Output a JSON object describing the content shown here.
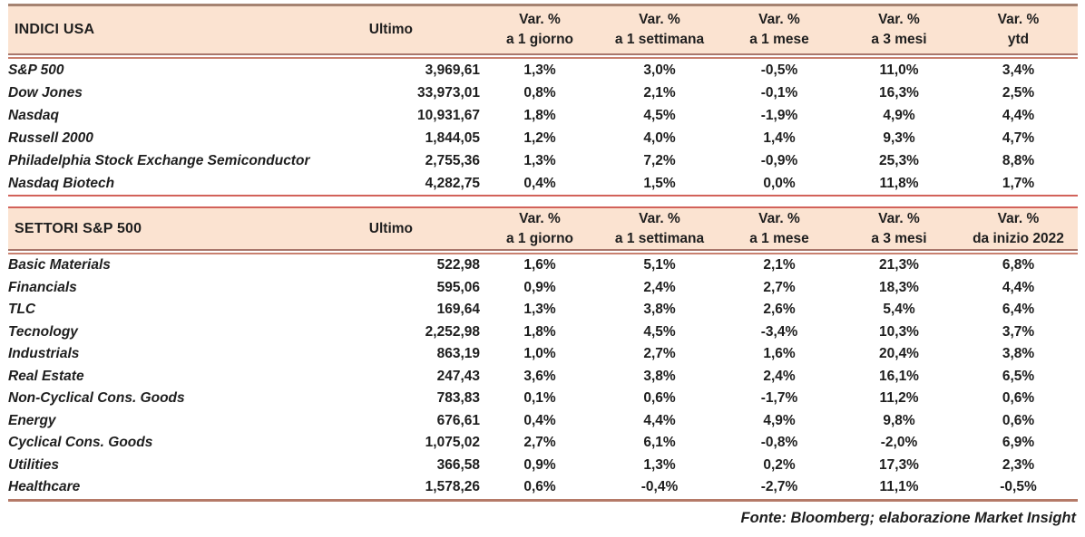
{
  "colors": {
    "header_bg": "#fbe3d1",
    "accent_red": "#d2625a",
    "accent_brown": "#a8766b",
    "accent_brown_light": "#c9806f",
    "bottom_line": "#b57a68",
    "text": "#1e1e1e"
  },
  "tables": [
    {
      "title": "INDICI USA",
      "ultimo_label": "Ultimo",
      "var_columns": [
        {
          "line1": "Var. %",
          "line2": "a 1 giorno"
        },
        {
          "line1": "Var. %",
          "line2": "a 1 settimana"
        },
        {
          "line1": "Var. %",
          "line2": "a 1 mese"
        },
        {
          "line1": "Var. %",
          "line2": "a 3 mesi"
        },
        {
          "line1": "Var. %",
          "line2": "ytd"
        }
      ],
      "rows": [
        {
          "name": "S&P 500",
          "ultimo": "3,969,61",
          "changes": [
            "1,3%",
            "3,0%",
            "-0,5%",
            "11,0%",
            "3,4%"
          ]
        },
        {
          "name": "Dow Jones",
          "ultimo": "33,973,01",
          "changes": [
            "0,8%",
            "2,1%",
            "-0,1%",
            "16,3%",
            "2,5%"
          ]
        },
        {
          "name": "Nasdaq",
          "ultimo": "10,931,67",
          "changes": [
            "1,8%",
            "4,5%",
            "-1,9%",
            "4,9%",
            "4,4%"
          ]
        },
        {
          "name": "Russell 2000",
          "ultimo": "1,844,05",
          "changes": [
            "1,2%",
            "4,0%",
            "1,4%",
            "9,3%",
            "4,7%"
          ]
        },
        {
          "name": "Philadelphia Stock Exchange Semiconductor",
          "ultimo": "2,755,36",
          "changes": [
            "1,3%",
            "7,2%",
            "-0,9%",
            "25,3%",
            "8,8%"
          ]
        },
        {
          "name": "Nasdaq Biotech",
          "ultimo": "4,282,75",
          "changes": [
            "0,4%",
            "1,5%",
            "0,0%",
            "11,8%",
            "1,7%"
          ]
        }
      ]
    },
    {
      "title": "SETTORI S&P 500",
      "ultimo_label": "Ultimo",
      "var_columns": [
        {
          "line1": "Var. %",
          "line2": "a 1 giorno"
        },
        {
          "line1": "Var. %",
          "line2": "a 1 settimana"
        },
        {
          "line1": "Var. %",
          "line2": "a 1 mese"
        },
        {
          "line1": "Var. %",
          "line2": "a 3 mesi"
        },
        {
          "line1": "Var. %",
          "line2": "da inizio 2022"
        }
      ],
      "rows": [
        {
          "name": "Basic Materials",
          "ultimo": "522,98",
          "changes": [
            "1,6%",
            "5,1%",
            "2,1%",
            "21,3%",
            "6,8%"
          ]
        },
        {
          "name": "Financials",
          "ultimo": "595,06",
          "changes": [
            "0,9%",
            "2,4%",
            "2,7%",
            "18,3%",
            "4,4%"
          ]
        },
        {
          "name": "TLC",
          "ultimo": "169,64",
          "changes": [
            "1,3%",
            "3,8%",
            "2,6%",
            "5,4%",
            "6,4%"
          ]
        },
        {
          "name": "Tecnology",
          "ultimo": "2,252,98",
          "changes": [
            "1,8%",
            "4,5%",
            "-3,4%",
            "10,3%",
            "3,7%"
          ]
        },
        {
          "name": "Industrials",
          "ultimo": "863,19",
          "changes": [
            "1,0%",
            "2,7%",
            "1,6%",
            "20,4%",
            "3,8%"
          ]
        },
        {
          "name": "Real Estate",
          "ultimo": "247,43",
          "changes": [
            "3,6%",
            "3,8%",
            "2,4%",
            "16,1%",
            "6,5%"
          ]
        },
        {
          "name": "Non-Cyclical Cons. Goods",
          "ultimo": "783,83",
          "changes": [
            "0,1%",
            "0,6%",
            "-1,7%",
            "11,2%",
            "0,6%"
          ]
        },
        {
          "name": "Energy",
          "ultimo": "676,61",
          "changes": [
            "0,4%",
            "4,4%",
            "4,9%",
            "9,8%",
            "0,6%"
          ]
        },
        {
          "name": "Cyclical Cons. Goods",
          "ultimo": "1,075,02",
          "changes": [
            "2,7%",
            "6,1%",
            "-0,8%",
            "-2,0%",
            "6,9%"
          ]
        },
        {
          "name": "Utilities",
          "ultimo": "366,58",
          "changes": [
            "0,9%",
            "1,3%",
            "0,2%",
            "17,3%",
            "2,3%"
          ]
        },
        {
          "name": "Healthcare",
          "ultimo": "1,578,26",
          "changes": [
            "0,6%",
            "-0,4%",
            "-2,7%",
            "11,1%",
            "-0,5%"
          ]
        }
      ]
    }
  ],
  "footer": "Fonte: Bloomberg; elaborazione Market Insight"
}
